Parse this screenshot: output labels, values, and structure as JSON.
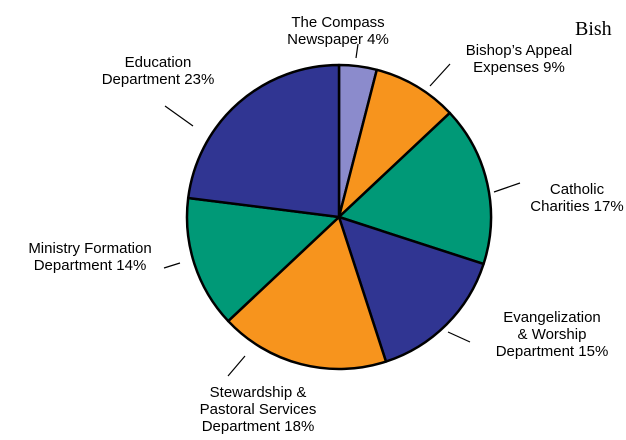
{
  "header_fragment": "Bish",
  "chart_data": {
    "type": "pie",
    "title": "",
    "start_angle_deg": 0,
    "direction": "clockwise",
    "legend": "none",
    "slices": [
      {
        "label_lines": [
          "The Compass",
          "Newspaper 4%"
        ],
        "value": 4,
        "color": "#8b8bcc"
      },
      {
        "label_lines": [
          "Bishop’s Appeal",
          "Expenses 9%"
        ],
        "value": 9,
        "color": "#f7941d"
      },
      {
        "label_lines": [
          "Catholic",
          "Charities 17%"
        ],
        "value": 17,
        "color": "#009977"
      },
      {
        "label_lines": [
          "Evangelization",
          "& Worship",
          "Department 15%"
        ],
        "value": 15,
        "color": "#303592"
      },
      {
        "label_lines": [
          "Stewardship &",
          "Pastoral Services",
          "Department 18%"
        ],
        "value": 18,
        "color": "#f7941d"
      },
      {
        "label_lines": [
          "Ministry Formation",
          "Department 14%"
        ],
        "value": 14,
        "color": "#009977"
      },
      {
        "label_lines": [
          "Education",
          "Department 23%"
        ],
        "value": 23,
        "color": "#303592"
      }
    ]
  }
}
